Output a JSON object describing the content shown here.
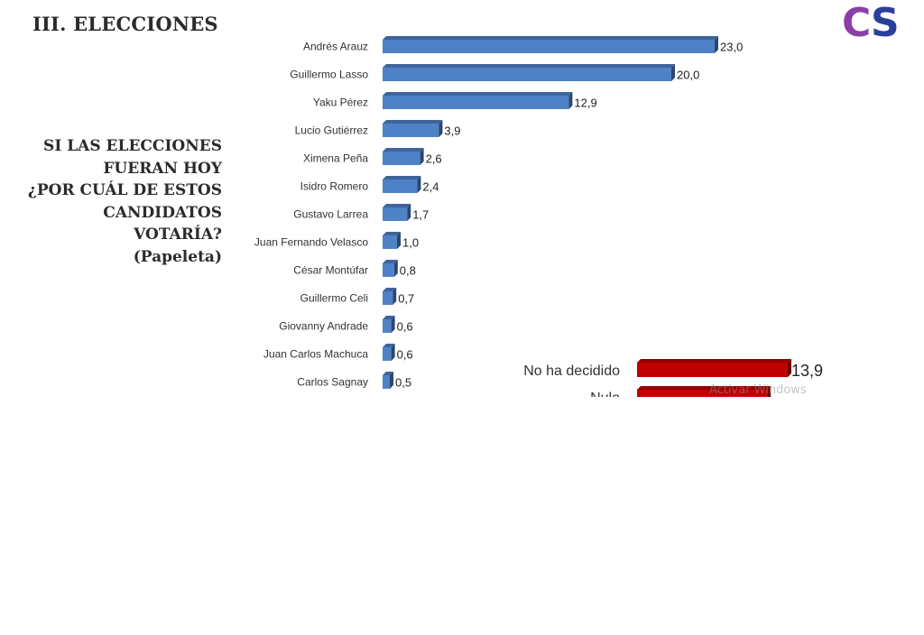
{
  "header": {
    "section_title": "III. ELECCIONES"
  },
  "question": {
    "lines": [
      "SI LAS ELECCIONES",
      "FUERAN HOY",
      "¿POR CUÁL DE ESTOS",
      "CANDIDATOS",
      "VOTARÍA?",
      "(Papeleta)"
    ]
  },
  "logo": {
    "letter_c": "C",
    "letter_s": "S",
    "color_c": "#8a3fa8",
    "color_s": "#2a3f9c"
  },
  "watermark": "Activar Windows",
  "chart_data": {
    "type": "bar",
    "orientation": "horizontal",
    "categories": [
      "Andrés Arauz",
      "Guillermo Lasso",
      "Yaku Pérez",
      "Lucio Gutiérrez",
      "Ximena Peña",
      "Isidro Romero",
      "Gustavo Larrea",
      "Juan Fernando Velasco",
      "César Montúfar",
      "Guillermo Celi",
      "Giovanny Andrade",
      "Juan Carlos Machuca",
      "Carlos Sagnay"
    ],
    "values": [
      23.0,
      20.0,
      12.9,
      3.9,
      2.6,
      2.4,
      1.7,
      1.0,
      0.8,
      0.7,
      0.6,
      0.6,
      0.5
    ],
    "value_labels": [
      "23,0",
      "20,0",
      "12,9",
      "3,9",
      "2,6",
      "2,4",
      "1,7",
      "1,0",
      "0,8",
      "0,7",
      "0,6",
      "0,6",
      "0,5"
    ],
    "bar_color": "#4f81c7",
    "secondary": {
      "categories": [
        "No ha decidido",
        "Nulo"
      ],
      "values": [
        13.9,
        12.0
      ],
      "value_labels": [
        "13,9",
        ""
      ],
      "bar_color": "#c00000"
    },
    "grid": false,
    "legend": "none"
  }
}
